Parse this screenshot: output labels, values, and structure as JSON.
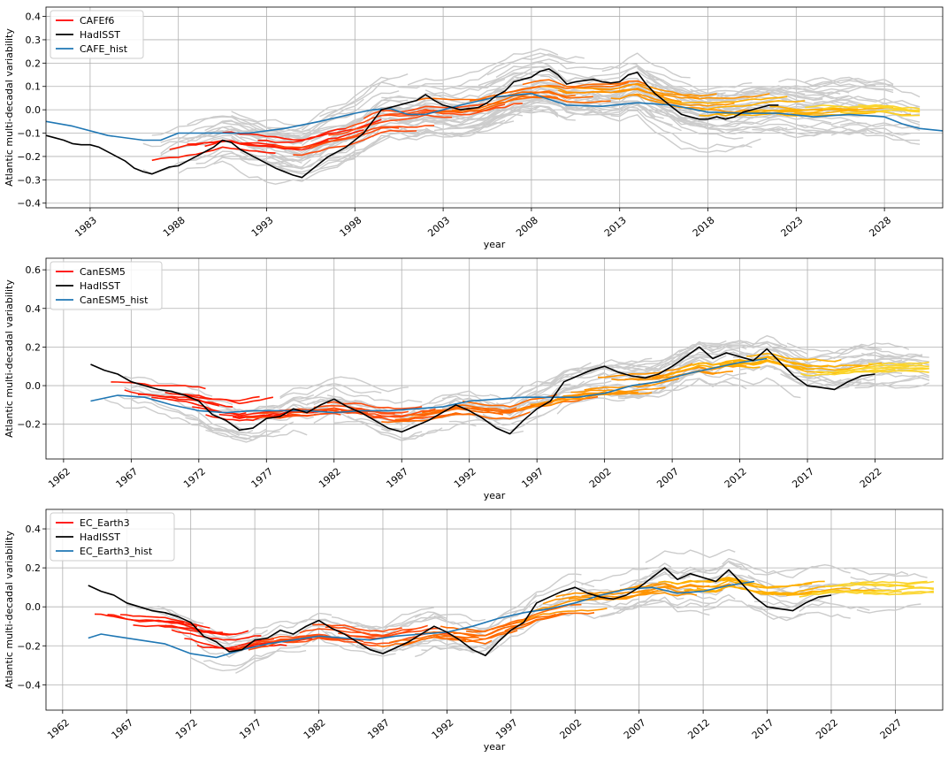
{
  "chart_data": [
    {
      "type": "line",
      "xlabel": "year",
      "ylabel": "Atlantic multi-decadal variability",
      "xlim": [
        1980.5,
        2031.3
      ],
      "ylim": [
        -0.42,
        0.44
      ],
      "x_ticks": [
        1983,
        1988,
        1993,
        1998,
        2003,
        2008,
        2013,
        2018,
        2023,
        2028
      ],
      "y_ticks": [
        -0.4,
        -0.3,
        -0.2,
        -0.1,
        0.0,
        0.1,
        0.2,
        0.3,
        0.4
      ],
      "y_tick_labels": [
        "−0.4",
        "−0.3",
        "−0.2",
        "−0.1",
        "0.0",
        "0.1",
        "0.2",
        "0.3",
        "0.4"
      ],
      "grid": true,
      "legend_position": "top-left",
      "legend": [
        {
          "label": "CAFEf6",
          "color": "#ff0000"
        },
        {
          "label": "HadISST",
          "color": "#000000"
        },
        {
          "label": "CAFE_hist",
          "color": "#1f77b4"
        }
      ],
      "ensemble": {
        "color": "#cccccc",
        "members": 160,
        "x_start": 1986,
        "x_end": 2030,
        "spread": 0.11
      },
      "forecast_colors": [
        "#ff1a00",
        "#ff4d0f",
        "#ff6a00",
        "#ff9400",
        "#ffb000",
        "#fbd42a"
      ],
      "series": [
        {
          "name": "HadISST",
          "color": "#000000",
          "x": [
            1980.5,
            1981.0,
            1981.5,
            1982.0,
            1982.5,
            1983.0,
            1983.5,
            1984.0,
            1984.5,
            1985.0,
            1985.5,
            1986.0,
            1986.5,
            1987.0,
            1987.5,
            1988.0,
            1988.5,
            1989.0,
            1989.5,
            1990.0,
            1990.5,
            1991.0,
            1991.5,
            1992.0,
            1992.5,
            1993.0,
            1993.5,
            1994.0,
            1994.5,
            1995.0,
            1995.5,
            1996.0,
            1996.5,
            1997.0,
            1997.5,
            1998.0,
            1998.5,
            1999.0,
            1999.5,
            2000.0,
            2000.5,
            2001.0,
            2001.5,
            2002.0,
            2002.5,
            2003.0,
            2003.5,
            2004.0,
            2004.5,
            2005.0,
            2005.5,
            2006.0,
            2006.5,
            2007.0,
            2007.5,
            2008.0,
            2008.5,
            2009.0,
            2009.5,
            2010.0,
            2010.5,
            2011.0,
            2011.5,
            2012.0,
            2012.5,
            2013.0,
            2013.5,
            2014.0,
            2014.5,
            2015.0,
            2015.5,
            2016.0,
            2016.5,
            2017.0,
            2017.5,
            2018.0,
            2018.5,
            2019.0,
            2019.5,
            2020.0,
            2020.5,
            2021.0,
            2021.5,
            2022.0
          ],
          "y": [
            -0.11,
            -0.12,
            -0.13,
            -0.145,
            -0.15,
            -0.15,
            -0.16,
            -0.18,
            -0.2,
            -0.22,
            -0.25,
            -0.265,
            -0.275,
            -0.26,
            -0.245,
            -0.24,
            -0.22,
            -0.2,
            -0.18,
            -0.16,
            -0.13,
            -0.14,
            -0.17,
            -0.19,
            -0.21,
            -0.23,
            -0.25,
            -0.265,
            -0.28,
            -0.29,
            -0.26,
            -0.23,
            -0.2,
            -0.18,
            -0.16,
            -0.13,
            -0.1,
            -0.05,
            0.0,
            0.01,
            0.02,
            0.03,
            0.04,
            0.065,
            0.04,
            0.02,
            0.01,
            0.0,
            0.005,
            0.01,
            0.03,
            0.06,
            0.08,
            0.12,
            0.13,
            0.14,
            0.165,
            0.175,
            0.15,
            0.11,
            0.12,
            0.125,
            0.13,
            0.12,
            0.115,
            0.12,
            0.15,
            0.16,
            0.11,
            0.07,
            0.04,
            0.01,
            -0.02,
            -0.03,
            -0.04,
            -0.04,
            -0.03,
            -0.04,
            -0.03,
            -0.01,
            0.0,
            0.01,
            0.02,
            0.02
          ]
        },
        {
          "name": "CAFE_hist",
          "color": "#1f77b4",
          "x": [
            1980.5,
            1982.0,
            1984.0,
            1986.0,
            1987.0,
            1988.0,
            1990.0,
            1992.0,
            1994.0,
            1996.0,
            1998.0,
            1999.0,
            2000.0,
            2001.0,
            2002.0,
            2004.0,
            2006.0,
            2008.0,
            2010.0,
            2012.0,
            2014.0,
            2016.0,
            2018.0,
            2020.0,
            2022.0,
            2024.0,
            2026.0,
            2028.0,
            2029.0,
            2030.0,
            2031.3
          ],
          "y": [
            -0.05,
            -0.07,
            -0.11,
            -0.13,
            -0.13,
            -0.1,
            -0.1,
            -0.1,
            -0.08,
            -0.05,
            -0.015,
            0.0,
            0.005,
            -0.02,
            -0.02,
            0.02,
            0.055,
            0.07,
            0.02,
            0.015,
            0.03,
            0.02,
            -0.01,
            -0.015,
            -0.015,
            -0.03,
            -0.02,
            -0.03,
            -0.06,
            -0.08,
            -0.09
          ]
        }
      ]
    },
    {
      "type": "line",
      "xlabel": "year",
      "ylabel": "Atlantic multi-decadal variability",
      "xlim": [
        1960.7,
        2027.0
      ],
      "ylim": [
        -0.38,
        0.66
      ],
      "x_ticks": [
        1962,
        1967,
        1972,
        1977,
        1982,
        1987,
        1992,
        1997,
        2002,
        2007,
        2012,
        2017,
        2022
      ],
      "y_ticks": [
        -0.2,
        0.0,
        0.2,
        0.4,
        0.6
      ],
      "y_tick_labels": [
        "−0.2",
        "0.0",
        "0.2",
        "0.4",
        "0.6"
      ],
      "grid": true,
      "legend_position": "top-left",
      "legend": [
        {
          "label": "CanESM5",
          "color": "#ff0000"
        },
        {
          "label": "HadISST",
          "color": "#000000"
        },
        {
          "label": "CanESM5_hist",
          "color": "#1f77b4"
        }
      ],
      "ensemble": {
        "color": "#cccccc",
        "members": 120,
        "x_start": 1965,
        "x_end": 2026,
        "spread": 0.1
      },
      "forecast_colors": [
        "#ff1a00",
        "#ff4d0f",
        "#ff6a00",
        "#ff9400",
        "#ffb000",
        "#fbd42a"
      ],
      "series": [
        {
          "name": "HadISST",
          "color": "#000000",
          "x": [
            1964.0,
            1965.0,
            1966.0,
            1967.0,
            1968.0,
            1969.0,
            1970.0,
            1971.0,
            1972.0,
            1973.0,
            1974.0,
            1975.0,
            1976.0,
            1977.0,
            1978.0,
            1979.0,
            1980.0,
            1981.0,
            1982.0,
            1983.0,
            1984.0,
            1985.0,
            1986.0,
            1987.0,
            1988.0,
            1989.0,
            1990.0,
            1991.0,
            1992.0,
            1993.0,
            1994.0,
            1995.0,
            1996.0,
            1997.0,
            1998.0,
            1999.0,
            2000.0,
            2001.0,
            2002.0,
            2003.0,
            2004.0,
            2005.0,
            2006.0,
            2007.0,
            2008.0,
            2009.0,
            2010.0,
            2011.0,
            2012.0,
            2013.0,
            2014.0,
            2015.0,
            2016.0,
            2017.0,
            2018.0,
            2019.0,
            2020.0,
            2021.0,
            2022.0
          ],
          "y": [
            0.11,
            0.08,
            0.06,
            0.02,
            0.0,
            -0.02,
            -0.03,
            -0.05,
            -0.08,
            -0.15,
            -0.18,
            -0.23,
            -0.22,
            -0.17,
            -0.16,
            -0.12,
            -0.14,
            -0.1,
            -0.07,
            -0.11,
            -0.14,
            -0.18,
            -0.22,
            -0.24,
            -0.21,
            -0.18,
            -0.14,
            -0.1,
            -0.13,
            -0.17,
            -0.22,
            -0.25,
            -0.18,
            -0.12,
            -0.08,
            0.02,
            0.05,
            0.08,
            0.1,
            0.07,
            0.05,
            0.04,
            0.06,
            0.1,
            0.15,
            0.2,
            0.14,
            0.17,
            0.15,
            0.13,
            0.19,
            0.12,
            0.05,
            0.0,
            -0.01,
            -0.02,
            0.02,
            0.05,
            0.06
          ]
        },
        {
          "name": "CanESM5_hist",
          "color": "#1f77b4",
          "x": [
            1964.0,
            1966.0,
            1968.0,
            1970.0,
            1972.0,
            1974.0,
            1976.0,
            1978.0,
            1980.0,
            1982.0,
            1984.0,
            1986.0,
            1988.0,
            1990.0,
            1992.0,
            1994.0,
            1996.0,
            1998.0,
            2000.0,
            2002.0,
            2004.0,
            2006.0,
            2008.0,
            2010.0,
            2012.0,
            2014.0
          ],
          "y": [
            -0.08,
            -0.05,
            -0.06,
            -0.1,
            -0.13,
            -0.14,
            -0.13,
            -0.13,
            -0.13,
            -0.14,
            -0.13,
            -0.13,
            -0.12,
            -0.11,
            -0.08,
            -0.07,
            -0.06,
            -0.06,
            -0.06,
            -0.04,
            0.0,
            0.02,
            0.06,
            0.09,
            0.12,
            0.14
          ]
        }
      ]
    },
    {
      "type": "line",
      "xlabel": "year",
      "ylabel": "Atlantic multi-decadal variability",
      "xlim": [
        1960.7,
        2030.7
      ],
      "ylim": [
        -0.53,
        0.5
      ],
      "x_ticks": [
        1962,
        1967,
        1972,
        1977,
        1982,
        1987,
        1992,
        1997,
        2002,
        2007,
        2012,
        2017,
        2022,
        2027
      ],
      "y_ticks": [
        -0.4,
        -0.2,
        0.0,
        0.2,
        0.4
      ],
      "y_tick_labels": [
        "−0.4",
        "−0.2",
        "0.0",
        "0.2",
        "0.4"
      ],
      "grid": true,
      "legend_position": "top-left",
      "legend": [
        {
          "label": "EC_Earth3",
          "color": "#ff0000"
        },
        {
          "label": "HadISST",
          "color": "#000000"
        },
        {
          "label": "EC_Earth3_hist",
          "color": "#1f77b4"
        }
      ],
      "ensemble": {
        "color": "#cccccc",
        "members": 70,
        "x_start": 1964,
        "x_end": 2030,
        "spread": 0.12
      },
      "forecast_colors": [
        "#ff1a00",
        "#ff4d0f",
        "#ff6a00",
        "#ff9400",
        "#ffb000",
        "#fbd42a"
      ],
      "series": [
        {
          "name": "HadISST",
          "color": "#000000",
          "x": [
            1964.0,
            1965.0,
            1966.0,
            1967.0,
            1968.0,
            1969.0,
            1970.0,
            1971.0,
            1972.0,
            1973.0,
            1974.0,
            1975.0,
            1976.0,
            1977.0,
            1978.0,
            1979.0,
            1980.0,
            1981.0,
            1982.0,
            1983.0,
            1984.0,
            1985.0,
            1986.0,
            1987.0,
            1988.0,
            1989.0,
            1990.0,
            1991.0,
            1992.0,
            1993.0,
            1994.0,
            1995.0,
            1996.0,
            1997.0,
            1998.0,
            1999.0,
            2000.0,
            2001.0,
            2002.0,
            2003.0,
            2004.0,
            2005.0,
            2006.0,
            2007.0,
            2008.0,
            2009.0,
            2010.0,
            2011.0,
            2012.0,
            2013.0,
            2014.0,
            2015.0,
            2016.0,
            2017.0,
            2018.0,
            2019.0,
            2020.0,
            2021.0,
            2022.0
          ],
          "y": [
            0.11,
            0.08,
            0.06,
            0.02,
            0.0,
            -0.02,
            -0.03,
            -0.05,
            -0.08,
            -0.15,
            -0.18,
            -0.23,
            -0.22,
            -0.17,
            -0.16,
            -0.12,
            -0.14,
            -0.1,
            -0.07,
            -0.11,
            -0.14,
            -0.18,
            -0.22,
            -0.24,
            -0.21,
            -0.18,
            -0.14,
            -0.1,
            -0.13,
            -0.17,
            -0.22,
            -0.25,
            -0.18,
            -0.12,
            -0.08,
            0.02,
            0.05,
            0.08,
            0.1,
            0.07,
            0.05,
            0.04,
            0.06,
            0.1,
            0.15,
            0.2,
            0.14,
            0.17,
            0.15,
            0.13,
            0.19,
            0.12,
            0.05,
            0.0,
            -0.01,
            -0.02,
            0.02,
            0.05,
            0.06
          ]
        },
        {
          "name": "EC_Earth3_hist",
          "color": "#1f77b4",
          "x": [
            1964.0,
            1965.0,
            1966.0,
            1968.0,
            1970.0,
            1972.0,
            1974.0,
            1976.0,
            1978.0,
            1980.0,
            1982.0,
            1984.0,
            1986.0,
            1988.0,
            1990.0,
            1992.0,
            1994.0,
            1996.0,
            1998.0,
            2000.0,
            2002.0,
            2004.0,
            2006.0,
            2008.0,
            2010.0,
            2012.0,
            2014.0,
            2016.0
          ],
          "y": [
            -0.16,
            -0.14,
            -0.15,
            -0.17,
            -0.19,
            -0.24,
            -0.26,
            -0.22,
            -0.19,
            -0.17,
            -0.15,
            -0.16,
            -0.17,
            -0.15,
            -0.14,
            -0.13,
            -0.1,
            -0.06,
            -0.03,
            -0.01,
            0.02,
            0.06,
            0.09,
            0.1,
            0.07,
            0.08,
            0.11,
            0.13
          ]
        }
      ]
    }
  ]
}
